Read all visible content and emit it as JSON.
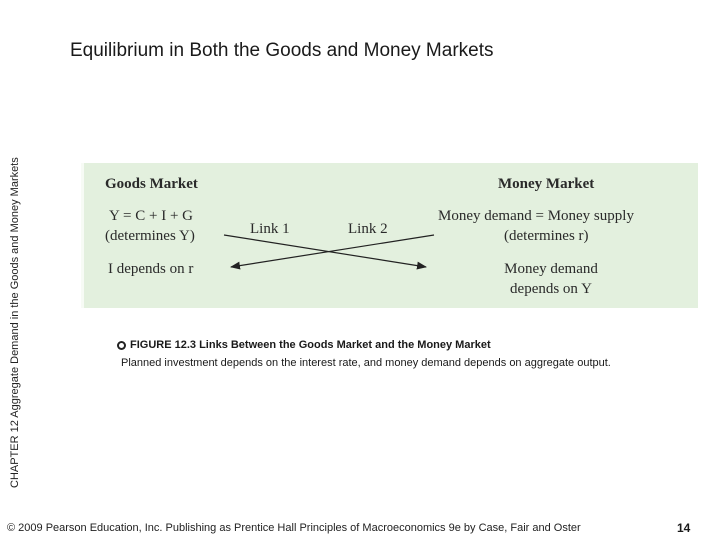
{
  "slide": {
    "side_label": "CHAPTER 12 Aggregate Demand in the Goods and Money Markets",
    "title": "Equilibrium in Both the Goods and Money Markets",
    "page_number": "14"
  },
  "figure": {
    "goods_header": "Goods Market",
    "money_header": "Money Market",
    "goods_eq": "Y = C + I + G",
    "goods_determines": "(determines Y)",
    "goods_depends": "I depends on r",
    "link1": "Link 1",
    "link2": "Link 2",
    "money_eq": "Money demand = Money supply",
    "money_determines": "(determines r)",
    "money_depends_1": "Money demand",
    "money_depends_2": "depends on Y"
  },
  "caption": {
    "title": "FIGURE 12.3 Links Between the Goods Market and the Money Market",
    "body": "Planned investment depends on the interest rate, and money demand depends on aggregate output."
  },
  "footer": {
    "text": "© 2009 Pearson Education, Inc. Publishing as Prentice Hall  Principles of Macroeconomics 9e by Case, Fair and Oster"
  }
}
